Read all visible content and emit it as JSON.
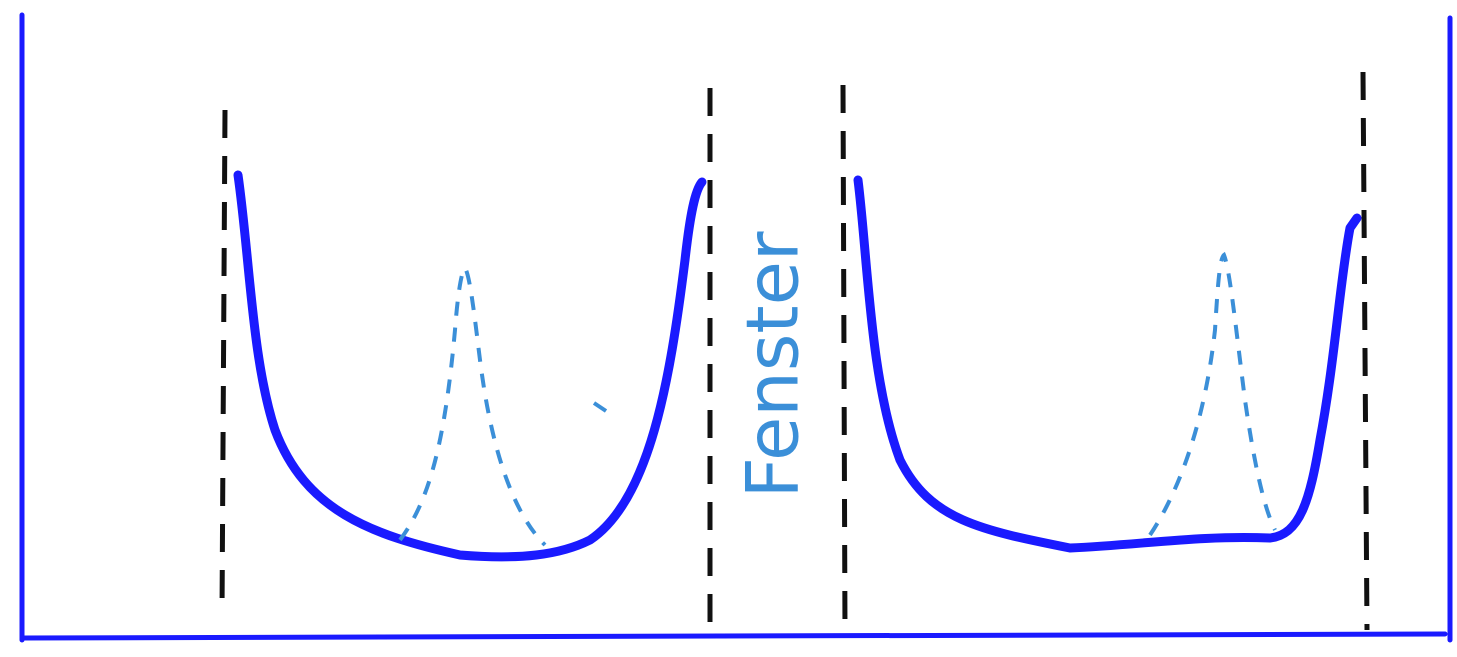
{
  "label": "Fenster"
}
